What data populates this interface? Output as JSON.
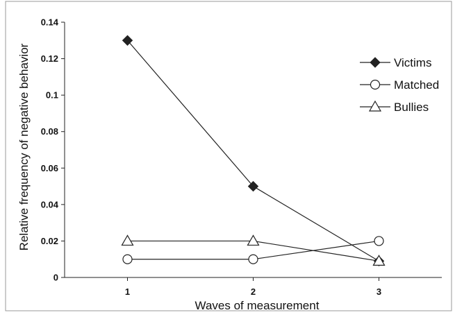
{
  "chart_data": {
    "type": "line",
    "title": "",
    "xlabel": "Waves of measurement",
    "ylabel": "Relative frequency of negative behavior",
    "x": [
      1,
      2,
      3
    ],
    "xlim": [
      0.5,
      3.5
    ],
    "ylim": [
      0,
      0.14
    ],
    "x_ticks": [
      "1",
      "2",
      "3"
    ],
    "y_ticks": [
      "0",
      "0.02",
      "0.04",
      "0.06",
      "0.08",
      "0.1",
      "0.12",
      "0.14"
    ],
    "grid": false,
    "legend_position": "top-right",
    "series": [
      {
        "name": "Victims",
        "marker": "diamond-filled",
        "values": [
          0.13,
          0.05,
          0.009
        ]
      },
      {
        "name": "Matched",
        "marker": "circle-open",
        "values": [
          0.01,
          0.01,
          0.02
        ]
      },
      {
        "name": "Bullies",
        "marker": "triangle-open",
        "values": [
          0.02,
          0.02,
          0.009
        ]
      }
    ]
  }
}
